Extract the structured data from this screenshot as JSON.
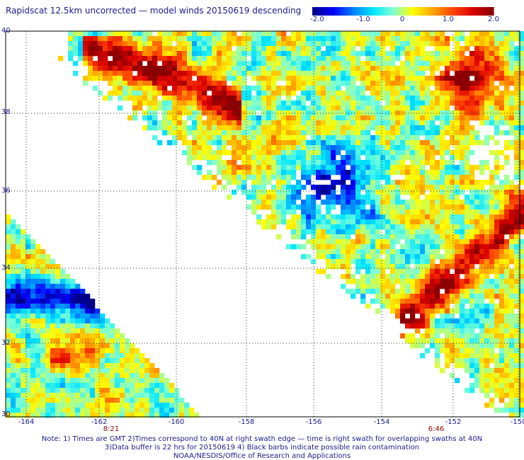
{
  "title": "Rapidscat 12.5km uncorrected — model winds 20150619 descending",
  "colorbar": {
    "ticks": [
      "-2.0",
      "-1.0",
      "0",
      "1.0",
      "2.0"
    ],
    "colors": [
      "#00008b",
      "#0000ff",
      "#0080ff",
      "#00e5ff",
      "#7fffd4",
      "#ffff00",
      "#ffa500",
      "#ff4500",
      "#dc0000",
      "#8b0000"
    ]
  },
  "map": {
    "lat_ticks": [
      "40",
      "38",
      "36",
      "34",
      "32",
      "30"
    ],
    "lon_ticks": [
      "-164",
      "-162",
      "-160",
      "-158",
      "-156",
      "-154",
      "-152",
      "-150"
    ],
    "time_labels": [
      "8:21",
      "6:46"
    ],
    "value_range": [
      -2.0,
      2.0
    ]
  },
  "notes": {
    "line1": "Note: 1) Times are GMT 2)Times correspond to 40N at right swath edge — time is right swath for overlapping swaths at 40N",
    "line2": "3)Data buffer is 22 hrs for 20150619 4) Black barbs indicate possible rain contamination",
    "line3": "NOAA/NESDIS/Office of Research and Applications"
  }
}
